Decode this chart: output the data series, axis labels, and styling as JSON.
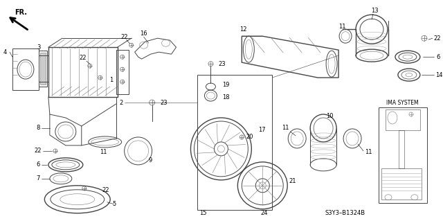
{
  "background_color": "#ffffff",
  "fig_width": 6.4,
  "fig_height": 3.19,
  "dpi": 100,
  "gray1": "#444444",
  "gray2": "#777777",
  "gray3": "#aaaaaa",
  "gray4": "#cccccc",
  "black": "#000000",
  "part_code": "S3Y3–B1324B",
  "ima_label": "IMA SYSTEM"
}
